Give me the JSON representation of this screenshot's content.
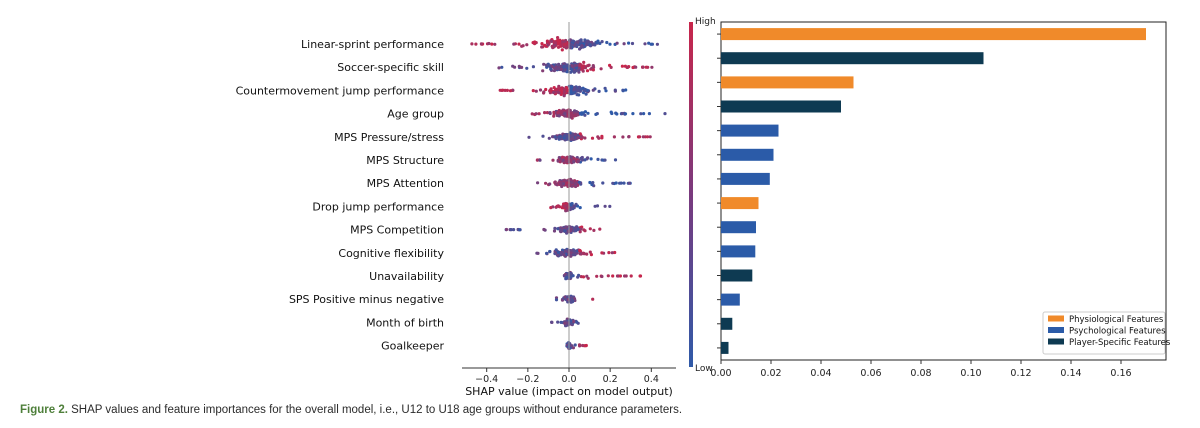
{
  "chart_data": [
    {
      "type": "scatter",
      "subtype": "shap-beeswarm",
      "features": [
        "Linear-sprint performance",
        "Soccer-specific skill",
        "Countermovement jump performance",
        "Age group",
        "MPS Pressure/stress",
        "MPS Structure",
        "MPS Attention",
        "Drop jump performance",
        "MPS Competition",
        "Cognitive flexibility",
        "Unavailability",
        "SPS Positive minus negative ",
        "Month of birth",
        "Goalkeeper"
      ],
      "shap_ranges": [
        [
          -0.5,
          0.44
        ],
        [
          -0.36,
          0.43
        ],
        [
          -0.34,
          0.29
        ],
        [
          -0.19,
          0.48
        ],
        [
          -0.21,
          0.41
        ],
        [
          -0.16,
          0.25
        ],
        [
          -0.19,
          0.33
        ],
        [
          -0.09,
          0.22
        ],
        [
          -0.31,
          0.16
        ],
        [
          -0.2,
          0.25
        ],
        [
          -0.03,
          0.35
        ],
        [
          -0.08,
          0.12
        ],
        [
          -0.09,
          0.05
        ],
        [
          -0.01,
          0.09
        ]
      ],
      "xlabel": "SHAP value (impact on model output)",
      "xticks": [
        "−0.4",
        "−0.2",
        "0.0",
        "0.2",
        "0.4"
      ],
      "xtick_values": [
        -0.4,
        -0.2,
        0.0,
        0.2,
        0.4
      ],
      "xlim": [
        -0.52,
        0.52
      ],
      "colorbar": {
        "high_label": "High",
        "low_label": "Low",
        "high_color": "#c8264b",
        "low_color": "#2f5aa8"
      }
    },
    {
      "type": "bar",
      "orientation": "horizontal",
      "categories": [
        "Linear-sprint performance",
        "Soccer-specific skill",
        "Countermovement jump performance",
        "Age group",
        "MPS Pressure/stress",
        "MPS Structure",
        "MPS Attention",
        "Drop jump performance",
        "MPS Competition",
        "Cognitive flexibility",
        "Unavailability",
        "SPS Positive minus negative ",
        "Month of birth",
        "Goalkeeper"
      ],
      "values": [
        0.17,
        0.105,
        0.053,
        0.048,
        0.023,
        0.021,
        0.0195,
        0.015,
        0.014,
        0.0137,
        0.0125,
        0.0075,
        0.0045,
        0.003
      ],
      "groups": [
        "Physiological Features",
        "Player-Specific Features",
        "Physiological Features",
        "Player-Specific Features",
        "Psychological Features",
        "Psychological Features",
        "Psychological Features",
        "Physiological Features",
        "Psychological Features",
        "Psychological Features",
        "Player-Specific Features",
        "Psychological Features",
        "Player-Specific Features",
        "Player-Specific Features"
      ],
      "legend": [
        {
          "name": "Physiological Features",
          "color": "#f08a2a"
        },
        {
          "name": "Psychological Features",
          "color": "#2b5ba8"
        },
        {
          "name": "Player-Specific Features",
          "color": "#0e3a52"
        }
      ],
      "legend_position": "lower-right",
      "xticks": [
        "0.00",
        "0.02",
        "0.04",
        "0.06",
        "0.08",
        "0.10",
        "0.12",
        "0.14",
        "0.16"
      ],
      "xtick_values": [
        0.0,
        0.02,
        0.04,
        0.06,
        0.08,
        0.1,
        0.12,
        0.14,
        0.16
      ],
      "xlim": [
        0,
        0.178
      ]
    }
  ],
  "caption": {
    "label": "Figure 2.",
    "text": " SHAP values and feature importances for the overall model, i.e., U12 to U18 age groups without endurance parameters."
  }
}
